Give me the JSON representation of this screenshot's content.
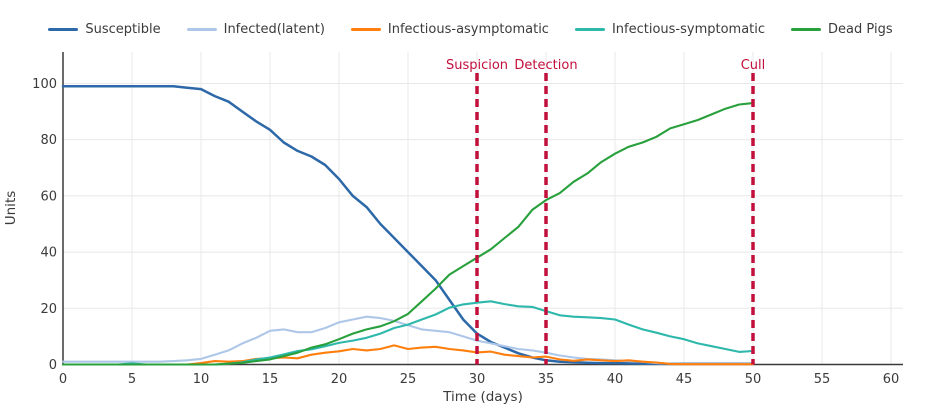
{
  "chart_data": {
    "type": "line",
    "title": "",
    "xlabel": "Time (days)",
    "ylabel": "Units",
    "x_ticks": [
      0,
      5,
      10,
      15,
      20,
      25,
      30,
      35,
      40,
      45,
      50,
      55,
      60
    ],
    "y_ticks": [
      0,
      20,
      40,
      60,
      80,
      100
    ],
    "xlim": [
      0,
      60.9
    ],
    "ylim": [
      0,
      111
    ],
    "grid": true,
    "legend_position": "top-center",
    "text_color": "#3b3b3b",
    "grid_color": "#e8e8e8",
    "axis_color": "#3a3a3a",
    "annotation_color": "#c2103c",
    "x": [
      0,
      1,
      2,
      3,
      4,
      5,
      6,
      7,
      8,
      9,
      10,
      11,
      12,
      13,
      14,
      15,
      16,
      17,
      18,
      19,
      20,
      21,
      22,
      23,
      24,
      25,
      26,
      27,
      28,
      29,
      30,
      31,
      32,
      33,
      34,
      35,
      36,
      37,
      38,
      39,
      40,
      41,
      42,
      43,
      44,
      45,
      46,
      47,
      48,
      49,
      50
    ],
    "series": [
      {
        "name": "Susceptible",
        "color": "#2d69a8",
        "values": [
          99,
          99,
          99,
          99,
          99,
          99,
          99,
          99,
          99,
          98.5,
          98,
          95.5,
          93.5,
          90,
          86.5,
          83.5,
          79,
          76,
          74,
          71,
          66,
          60,
          56,
          50,
          45,
          40,
          35,
          30,
          23,
          16,
          11,
          8,
          6,
          4,
          2.5,
          1.5,
          1,
          0.8,
          0.6,
          0.5,
          0.5,
          0.4,
          0.3,
          0.3,
          0.3,
          0.3,
          0.3,
          0.3,
          0.3,
          0.3,
          0.3
        ]
      },
      {
        "name": "Infected(latent)",
        "color": "#aec7e8",
        "values": [
          1,
          1,
          1,
          1,
          1,
          1,
          1,
          1,
          1.2,
          1.5,
          2,
          3.5,
          5,
          7.5,
          9.5,
          12,
          12.5,
          11.5,
          11.5,
          13,
          15,
          16,
          17,
          16.5,
          15.5,
          14,
          12.5,
          12,
          11.5,
          10,
          8.5,
          7.5,
          6.5,
          5.5,
          5,
          4.2,
          3.2,
          2.5,
          2,
          1.8,
          1.5,
          1.2,
          1,
          0.5,
          0.3,
          0.2,
          0.2,
          0.2,
          0.2,
          0.2,
          0.2
        ]
      },
      {
        "name": "Infectious-asymptomatic",
        "color": "#ff7f0e",
        "values": [
          0,
          0,
          0,
          0,
          0,
          0,
          0,
          0,
          0,
          0,
          0.5,
          1.2,
          1,
          1.2,
          2,
          2.2,
          2.5,
          2.2,
          3.5,
          4.2,
          4.7,
          5.5,
          5,
          5.5,
          6.8,
          5.5,
          6,
          6.3,
          5.5,
          5,
          4.3,
          4.6,
          3.5,
          3,
          2.5,
          2.8,
          1.8,
          1.3,
          1.8,
          1.5,
          1.2,
          1.5,
          1,
          0.7,
          0.2,
          0.1,
          0.1,
          0.1,
          0.1,
          0.1,
          0.1
        ]
      },
      {
        "name": "Infectious-symptomatic",
        "color": "#2eb8ac",
        "values": [
          0,
          0,
          0,
          0,
          0,
          0.4,
          0,
          0,
          0,
          0,
          0,
          0,
          0.3,
          0.8,
          1.8,
          2.5,
          3.6,
          4.8,
          5.4,
          6.5,
          7.7,
          8.5,
          9.5,
          11,
          13,
          14.2,
          16,
          17.8,
          20.2,
          21.4,
          22,
          22.5,
          21.5,
          20.7,
          20.5,
          19,
          17.5,
          17,
          16.8,
          16.5,
          16,
          14.2,
          12.5,
          11.3,
          10,
          9,
          7.5,
          6.5,
          5.5,
          4.5,
          4.8
        ]
      },
      {
        "name": "Dead Pigs",
        "color": "#28a03c",
        "values": [
          0,
          0,
          0,
          0,
          0,
          0,
          0,
          0,
          0,
          0,
          0,
          0,
          0.3,
          0.6,
          1.2,
          1.8,
          3,
          4.2,
          6,
          7.2,
          9,
          11,
          12.5,
          13.6,
          15.4,
          18,
          22.5,
          27,
          32,
          35,
          38,
          41,
          45,
          49,
          55,
          58.5,
          61,
          65,
          68,
          72,
          75,
          77.5,
          79,
          81,
          84,
          85.5,
          87,
          89,
          91,
          92.5,
          93
        ]
      }
    ],
    "annotations": [
      {
        "label": "Suspicion",
        "x": 30
      },
      {
        "label": "Detection",
        "x": 35
      },
      {
        "label": "Cull",
        "x": 50
      }
    ]
  }
}
